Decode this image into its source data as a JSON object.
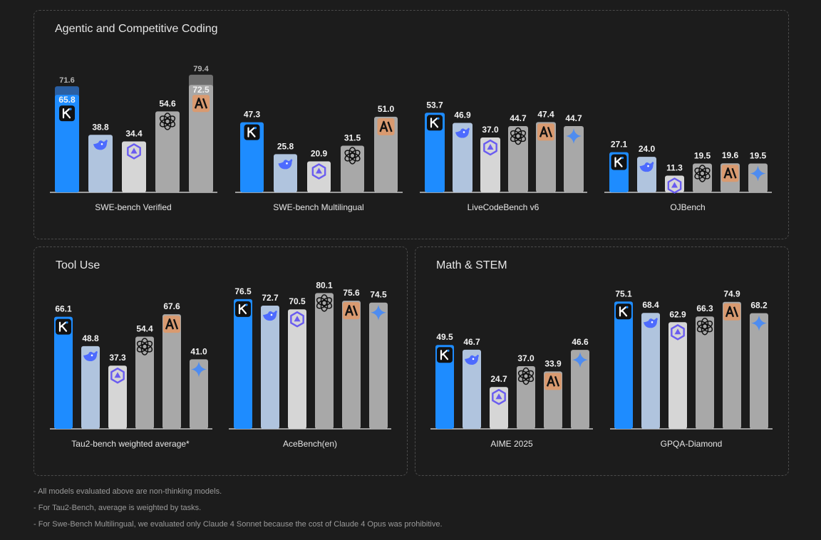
{
  "panels": {
    "coding": {
      "title": "Agentic and Competitive Coding"
    },
    "tool": {
      "title": "Tool Use"
    },
    "math": {
      "title": "Math & STEM"
    }
  },
  "footnotes": [
    "- All models evaluated above are non-thinking models.",
    "- For Tau2-Bench, average is weighted by tasks.",
    "- For Swe-Bench Multilingual, we evaluated only Claude 4 Sonnet because the cost of Claude 4 Opus was prohibitive."
  ],
  "colors": {
    "kimi": "#1e8cff",
    "deepseek": "#b0c4de",
    "qwen": "#d6d6d6",
    "gpt": "#a8a8a8",
    "claude": "#a8a8a8",
    "gemini": "#a8a8a8",
    "claude_badge": "#d99a70",
    "background": "#1c1c1c"
  },
  "chart_data": [
    {
      "type": "bar",
      "title": "SWE-bench Verified",
      "categories": [
        "Kimi",
        "DeepSeek",
        "Qwen",
        "GPT",
        "Claude"
      ],
      "values": [
        65.8,
        38.8,
        34.4,
        54.6,
        72.5
      ],
      "stacked_top": {
        "0": 71.6,
        "4": 79.4
      },
      "labels": [
        "65.8",
        "38.8",
        "34.4",
        "54.6",
        "72.5"
      ],
      "top_labels": {
        "0": "71.6",
        "4": "79.4"
      },
      "ylim": [
        0,
        80
      ]
    },
    {
      "type": "bar",
      "title": "SWE-bench Multilingual",
      "categories": [
        "Kimi",
        "DeepSeek",
        "Qwen",
        "GPT",
        "Claude"
      ],
      "values": [
        47.3,
        25.8,
        20.9,
        31.5,
        51.0
      ],
      "labels": [
        "47.3",
        "25.8",
        "20.9",
        "31.5",
        "51.0"
      ],
      "ylim": [
        0,
        80
      ]
    },
    {
      "type": "bar",
      "title": "LiveCodeBench v6",
      "categories": [
        "Kimi",
        "DeepSeek",
        "Qwen",
        "GPT",
        "Claude",
        "Gemini"
      ],
      "values": [
        53.7,
        46.9,
        37.0,
        44.7,
        47.4,
        44.7
      ],
      "labels": [
        "53.7",
        "46.9",
        "37.0",
        "44.7",
        "47.4",
        "44.7"
      ],
      "ylim": [
        0,
        80
      ]
    },
    {
      "type": "bar",
      "title": "OJBench",
      "categories": [
        "Kimi",
        "DeepSeek",
        "Qwen",
        "GPT",
        "Claude",
        "Gemini"
      ],
      "values": [
        27.1,
        24.0,
        11.3,
        19.5,
        19.6,
        19.5
      ],
      "labels": [
        "27.1",
        "24.0",
        "11.3",
        "19.5",
        "19.6",
        "19.5"
      ],
      "ylim": [
        0,
        80
      ]
    },
    {
      "type": "bar",
      "title": "Tau2-bench weighted average*",
      "categories": [
        "Kimi",
        "DeepSeek",
        "Qwen",
        "GPT",
        "Claude",
        "Gemini"
      ],
      "values": [
        66.1,
        48.8,
        37.3,
        54.4,
        67.6,
        41.0
      ],
      "labels": [
        "66.1",
        "48.8",
        "37.3",
        "54.4",
        "67.6",
        "41.0"
      ],
      "ylim": [
        0,
        82
      ]
    },
    {
      "type": "bar",
      "title": "AceBench(en)",
      "categories": [
        "Kimi",
        "DeepSeek",
        "Qwen",
        "GPT",
        "Claude",
        "Gemini"
      ],
      "values": [
        76.5,
        72.7,
        70.5,
        80.1,
        75.6,
        74.5
      ],
      "labels": [
        "76.5",
        "72.7",
        "70.5",
        "80.1",
        "75.6",
        "74.5"
      ],
      "ylim": [
        0,
        82
      ]
    },
    {
      "type": "bar",
      "title": "AIME 2025",
      "categories": [
        "Kimi",
        "DeepSeek",
        "Qwen",
        "GPT",
        "Claude",
        "Gemini"
      ],
      "values": [
        49.5,
        46.7,
        24.7,
        37.0,
        33.9,
        46.6
      ],
      "labels": [
        "49.5",
        "46.7",
        "24.7",
        "37.0",
        "33.9",
        "46.6"
      ],
      "ylim": [
        0,
        82
      ]
    },
    {
      "type": "bar",
      "title": "GPQA-Diamond",
      "categories": [
        "Kimi",
        "DeepSeek",
        "Qwen",
        "GPT",
        "Claude",
        "Gemini"
      ],
      "values": [
        75.1,
        68.4,
        62.9,
        66.3,
        74.9,
        68.2
      ],
      "labels": [
        "75.1",
        "68.4",
        "62.9",
        "66.3",
        "74.9",
        "68.2"
      ],
      "ylim": [
        0,
        82
      ]
    }
  ]
}
